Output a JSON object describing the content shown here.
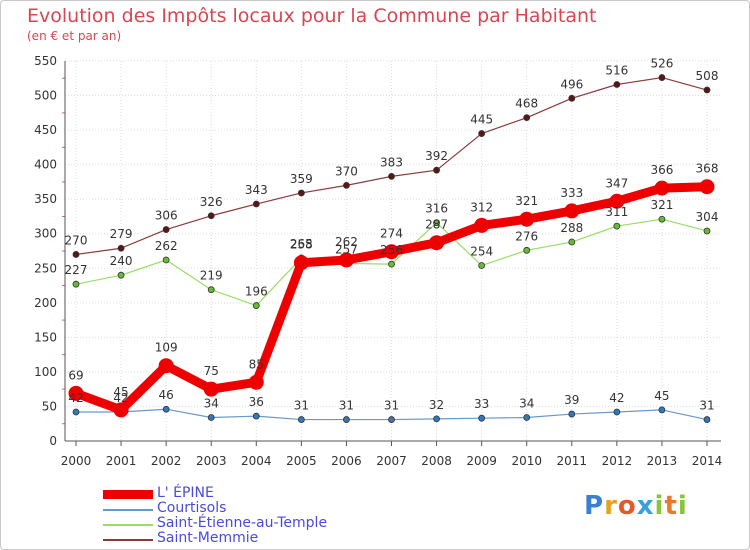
{
  "chart_data": {
    "type": "line",
    "title": "Evolution des Impôts locaux pour la Commune par Habitant",
    "subtitle": "(en € et par an)",
    "xlabel": "",
    "ylabel": "",
    "ylim": [
      0,
      550
    ],
    "yticks": [
      "0",
      "50",
      "100",
      "150",
      "200",
      "250",
      "300",
      "350",
      "400",
      "450",
      "500",
      "550"
    ],
    "x": [
      "2000",
      "2001",
      "2002",
      "2003",
      "2004",
      "2005",
      "2006",
      "2007",
      "2008",
      "2009",
      "2010",
      "2011",
      "2012",
      "2013",
      "2014"
    ],
    "grid": true,
    "legend_position": "bottom-left",
    "series": [
      {
        "name": "Saint-Memmie",
        "color": "#8b3a3a",
        "point_color": "#5c1515",
        "thick": false,
        "values": [
          270,
          279,
          306,
          326,
          343,
          359,
          370,
          383,
          392,
          445,
          468,
          496,
          516,
          526,
          508
        ]
      },
      {
        "name": "Saint-Étienne-au-Temple",
        "color": "#99dd66",
        "point_color": "#66bb33",
        "thick": false,
        "values": [
          227,
          240,
          262,
          219,
          196,
          265,
          257,
          256,
          316,
          254,
          276,
          288,
          311,
          321,
          304
        ]
      },
      {
        "name": "Courtisols",
        "color": "#6699cc",
        "point_color": "#3377bb",
        "thick": false,
        "values": [
          42,
          42,
          46,
          34,
          36,
          31,
          31,
          31,
          32,
          33,
          34,
          39,
          42,
          45,
          31
        ]
      },
      {
        "name": "L' ÉPINE",
        "color": "#ee0000",
        "point_color": "#ee0000",
        "thick": true,
        "values": [
          69,
          45,
          109,
          75,
          85,
          258,
          262,
          274,
          287,
          312,
          321,
          333,
          347,
          366,
          368
        ]
      }
    ],
    "legend_order": [
      "L' ÉPINE",
      "Courtisols",
      "Saint-Étienne-au-Temple",
      "Saint-Memmie"
    ]
  },
  "logo": {
    "letters": [
      "P",
      "r",
      "o",
      "x",
      "i",
      "t",
      "i"
    ],
    "colors": [
      "#3a7fd0",
      "#e8a020",
      "#e35a2a",
      "#3aa0d8",
      "#8ac43a",
      "#e87a2a",
      "#8ac43a"
    ]
  }
}
